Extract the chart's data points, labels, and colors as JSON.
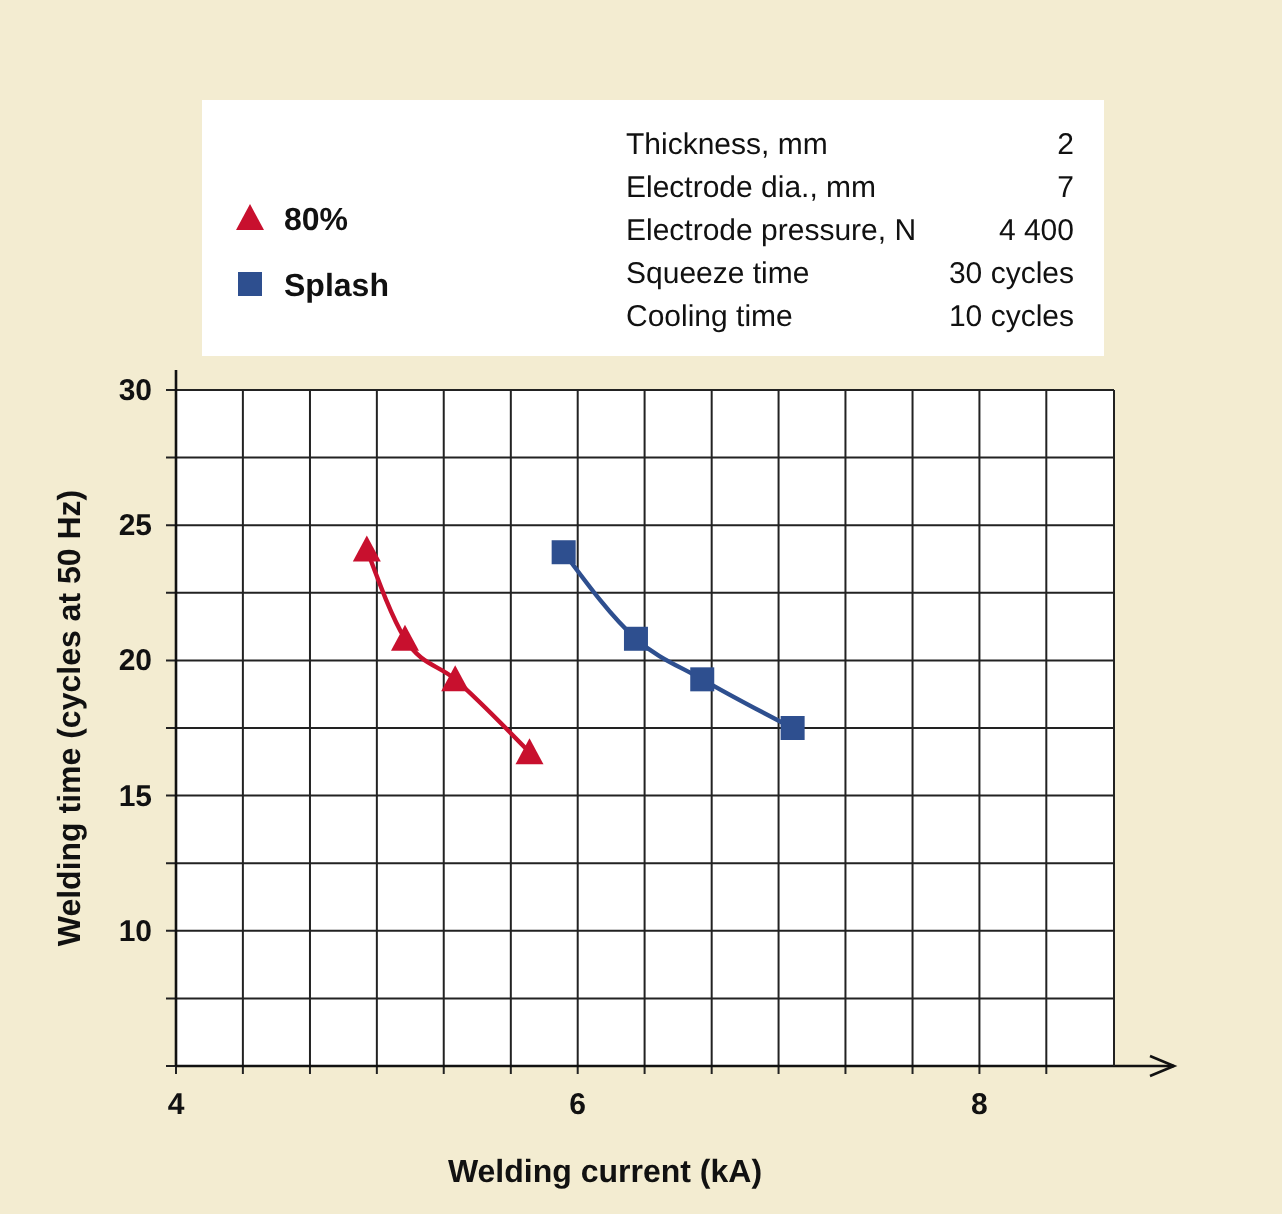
{
  "chart_data": {
    "type": "line",
    "xlabel": "Welding current (kA)",
    "ylabel": "Welding time (cycles at 50 Hz)",
    "xlim": [
      4,
      8.67
    ],
    "xticks": [
      4,
      {
        "value": 4.333,
        "label": null
      },
      {
        "value": 4.667,
        "label": null
      },
      {
        "value": 5,
        "label": null
      },
      {
        "value": 5.333,
        "label": null
      },
      {
        "value": 5.667,
        "label": null
      },
      6,
      {
        "value": 6.333,
        "label": null
      },
      {
        "value": 6.667,
        "label": null
      },
      {
        "value": 7,
        "label": null
      },
      {
        "value": 7.333,
        "label": null
      },
      {
        "value": 7.667,
        "label": null
      },
      8,
      {
        "value": 8.333,
        "label": null
      }
    ],
    "ylim": [
      5,
      30
    ],
    "yticks": [
      {
        "value": 5,
        "label": null
      },
      {
        "value": 7.5,
        "label": null
      },
      10,
      {
        "value": 12.5,
        "label": null
      },
      15,
      {
        "value": 17.5,
        "label": null
      },
      20,
      {
        "value": 22.5,
        "label": null
      },
      25,
      {
        "value": 27.5,
        "label": null
      },
      30
    ],
    "grid": true,
    "legend": "top",
    "line_style": "solid",
    "series": [
      {
        "name": "80%",
        "color": "#c8102e",
        "marker": "triangle",
        "x": [
          4.95,
          5.14,
          5.39,
          5.76
        ],
        "values": [
          24.1,
          20.8,
          19.3,
          16.6
        ]
      },
      {
        "name": "Splash",
        "color": "#2e4f8f",
        "marker": "square",
        "x": [
          5.93,
          6.29,
          6.62,
          7.07
        ],
        "values": [
          24,
          20.8,
          19.3,
          17.5
        ]
      }
    ],
    "annotations": [
      "Thickness, mm",
      "2",
      "Electrode dia., mm",
      "7",
      "Electrode pressure, N",
      "4 400",
      "Squeeze time",
      "30 cycles",
      "Cooling time",
      "10 cycles"
    ]
  }
}
